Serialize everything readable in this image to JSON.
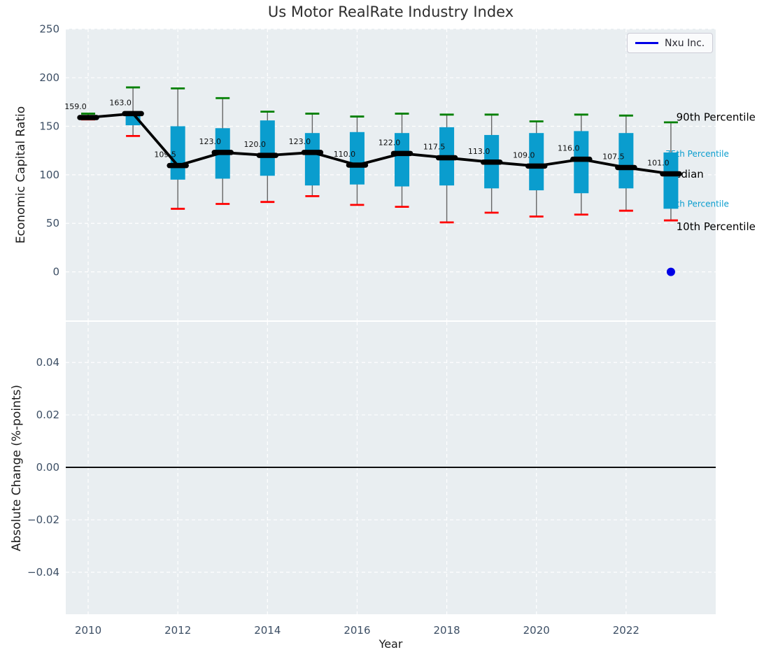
{
  "title": "Us Motor RealRate Industry Index",
  "legend": {
    "label": "Nxu Inc.",
    "line_color": "#0000e6"
  },
  "top_axis": {
    "ylabel": "Economic Capital Ratio",
    "yticks": [
      250,
      200,
      150,
      100,
      50,
      0
    ],
    "ylim": [
      -50,
      250.5
    ]
  },
  "bottom_axis": {
    "ylabel": "Absolute Change (%-points)",
    "ytick_labels": [
      "0.04",
      "0.02",
      "0.00",
      "−0.02",
      "−0.04"
    ],
    "ytick_values": [
      0.04,
      0.02,
      0.0,
      -0.02,
      -0.04
    ],
    "ylim": [
      -0.056,
      0.0555
    ],
    "zero_line": true
  },
  "x_axis": {
    "label": "Year",
    "ticks": [
      2010,
      2012,
      2014,
      2016,
      2018,
      2020,
      2022
    ],
    "xlim": [
      2009.5,
      2024
    ]
  },
  "colors": {
    "panel_bg": "#e9eef1",
    "grid": "#ffffff",
    "box_fill": "#0a9dce",
    "whisker": "#666666",
    "cap_90": "#008000",
    "cap_10": "#ff0000",
    "median": "#000000",
    "tick_label": "#3d4f65",
    "value_label": "#101010",
    "nxu_blue": "#0000e6"
  },
  "annotations": [
    {
      "label": "90th Percentile",
      "value": 159.5,
      "x_year": 2023.12,
      "color": "#000000",
      "size": 15
    },
    {
      "label": "75th Percentile",
      "value": 121.5,
      "x_year": 2022.88,
      "color": "#0a9dce",
      "size": 12
    },
    {
      "label": "Median",
      "value": 100.5,
      "x_year": 2022.88,
      "color": "#000000",
      "size": 15
    },
    {
      "label": "25th Percentile",
      "value": 70.0,
      "x_year": 2022.88,
      "color": "#0a9dce",
      "size": 12
    },
    {
      "label": "10th Percentile",
      "value": 46.5,
      "x_year": 2023.12,
      "color": "#000000",
      "size": 15
    }
  ],
  "chart_data": {
    "type": "boxplot+line",
    "title": "Us Motor RealRate Industry Index",
    "xlabel": "Year",
    "ylabel_top": "Economic Capital Ratio",
    "ylabel_bottom": "Absolute Change (%-points)",
    "years": [
      2010,
      2011,
      2012,
      2013,
      2014,
      2015,
      2016,
      2017,
      2018,
      2019,
      2020,
      2021,
      2022,
      2023
    ],
    "series": [
      {
        "name": "90th Percentile",
        "values": [
          163,
          190,
          189,
          179,
          165,
          163,
          160,
          163,
          162,
          162,
          155,
          162,
          161,
          154
        ]
      },
      {
        "name": "75th Percentile",
        "values": [
          161,
          163.5,
          150,
          148,
          156,
          143,
          144,
          143,
          149,
          141,
          143,
          145,
          143,
          123
        ]
      },
      {
        "name": "Median",
        "values": [
          159,
          163,
          109.5,
          123,
          120,
          123,
          110,
          122,
          117.5,
          113,
          109,
          116,
          107.5,
          101
        ]
      },
      {
        "name": "25th Percentile",
        "values": [
          158,
          151,
          95,
          96,
          99,
          89,
          90,
          88,
          89,
          86,
          84,
          81,
          86,
          65
        ]
      },
      {
        "name": "10th Percentile",
        "values": [
          157,
          140,
          65,
          70,
          72,
          78,
          69,
          67,
          51,
          61,
          57,
          59,
          63,
          53
        ]
      }
    ],
    "median_labels": [
      "159.0",
      "163.0",
      "109.5",
      "123.0",
      "120.0",
      "123.0",
      "110.0",
      "122.0",
      "117.5",
      "113.0",
      "109.0",
      "116.0",
      "107.5",
      "101.0"
    ],
    "nxu_point": {
      "year": 2023,
      "value": 0
    },
    "bottom_panel": {
      "visible_data": "none",
      "zero_line_value": 0.0
    },
    "legend_entries": [
      "Nxu Inc."
    ],
    "grid": "dashed-white",
    "legend_position": "upper right"
  }
}
